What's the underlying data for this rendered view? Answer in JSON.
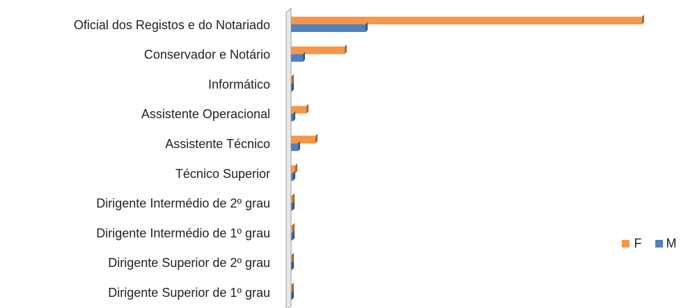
{
  "chart_data": {
    "type": "bar",
    "orientation": "horizontal",
    "categories": [
      "Oficial dos Registos e do Notariado",
      "Conservador e Notário",
      "Informático",
      "Assistente Operacional",
      "Assistente Técnico ",
      "Técnico Superior",
      "Dirigente Intermédio de 2º grau",
      "Dirigente Intermédio de 1º grau",
      "Dirigente Superior de 2º grau",
      "Dirigente Superior de 1º grau"
    ],
    "series": [
      {
        "name": "F",
        "color": "#f79646",
        "values": [
          504,
          77,
          1,
          22,
          35,
          6,
          2,
          2,
          1,
          1
        ]
      },
      {
        "name": "M",
        "color": "#4f81bd",
        "values": [
          107,
          17,
          1,
          3,
          10,
          3,
          2,
          2,
          1,
          1
        ]
      }
    ],
    "xlim": [
      0,
      520
    ],
    "legend": "right"
  }
}
